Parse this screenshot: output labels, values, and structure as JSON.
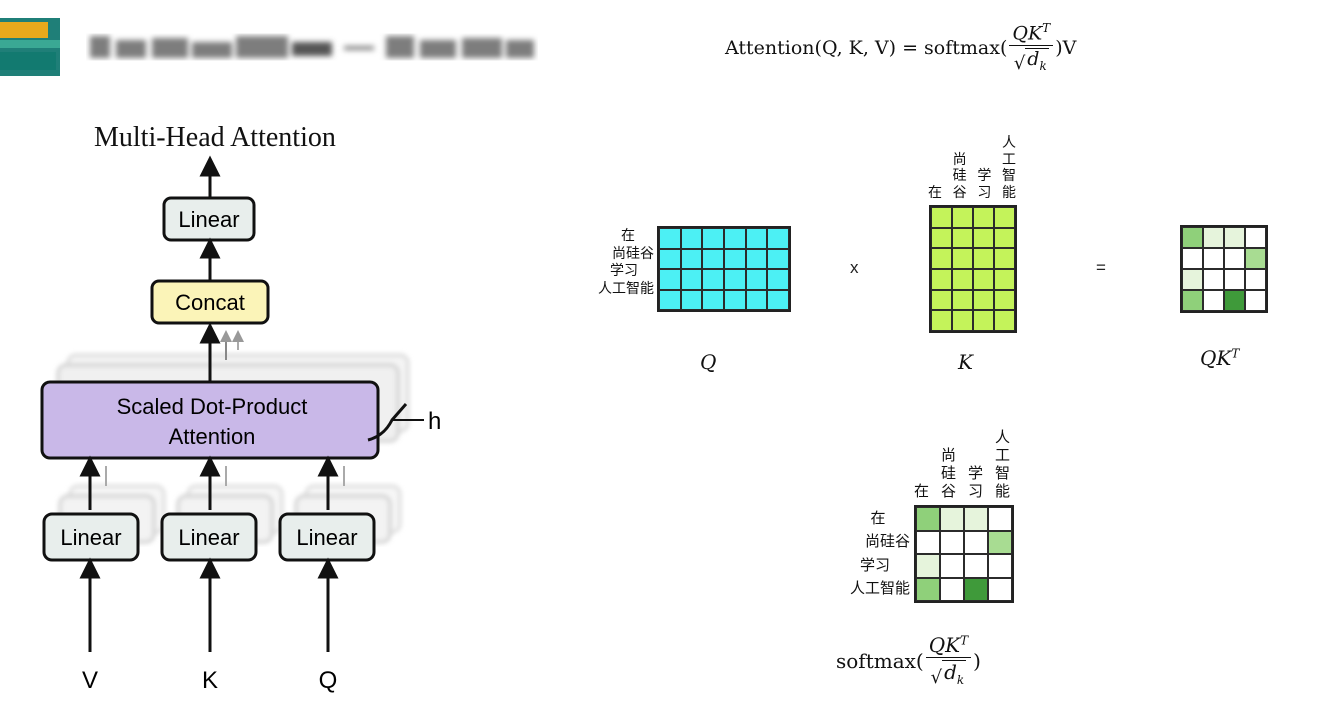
{
  "header": {
    "logo_icon": "logo-icon",
    "title_blurred": true
  },
  "formula": {
    "lhs": "Attention(Q, K, V) = softmax(",
    "num": "QK",
    "num_sup": "T",
    "den": "d",
    "den_sub": "k",
    "rhs": ")V"
  },
  "diagram": {
    "title": "Multi-Head Attention",
    "top_linear": "Linear",
    "concat": "Concat",
    "attention_line1": "Scaled Dot-Product",
    "attention_line2": "Attention",
    "heads_label": "h",
    "linears": [
      "Linear",
      "Linear",
      "Linear"
    ],
    "inputs": [
      "V",
      "K",
      "Q"
    ],
    "colors": {
      "linear_fill": "#e8eeec",
      "concat_fill": "#fbf4b8",
      "attention_fill": "#c9b8e8"
    }
  },
  "matrices": {
    "row_tokens": [
      "在",
      "尚硅谷",
      "学习",
      "人工智能"
    ],
    "col_tokens": [
      [
        "在"
      ],
      [
        "尚",
        "硅",
        "谷"
      ],
      [
        "学",
        "习"
      ],
      [
        "人",
        "工",
        "智",
        "能"
      ]
    ],
    "times_op": "x",
    "equals_op": "=",
    "q_label": "Q",
    "k_label": "K",
    "qkt_label": "QK",
    "qkt_sup": "T",
    "softmax_prefix": "softmax(",
    "softmax_num": "QK",
    "softmax_num_sup": "T",
    "softmax_den": "d",
    "softmax_den_sub": "k",
    "softmax_suffix": ")",
    "colors": {
      "q_fill": "#4cf0f4",
      "k_fill": "#c4f35a",
      "attn_weights": [
        [
          "#8fd07a",
          "#e6f4dc",
          "#e6f4dc",
          "#ffffff"
        ],
        [
          "#ffffff",
          "#ffffff",
          "#ffffff",
          "#a8dc92"
        ],
        [
          "#e6f4dc",
          "#ffffff",
          "#ffffff",
          "#ffffff"
        ],
        [
          "#8fd07a",
          "#ffffff",
          "#3f9a3a",
          "#ffffff"
        ]
      ]
    }
  }
}
